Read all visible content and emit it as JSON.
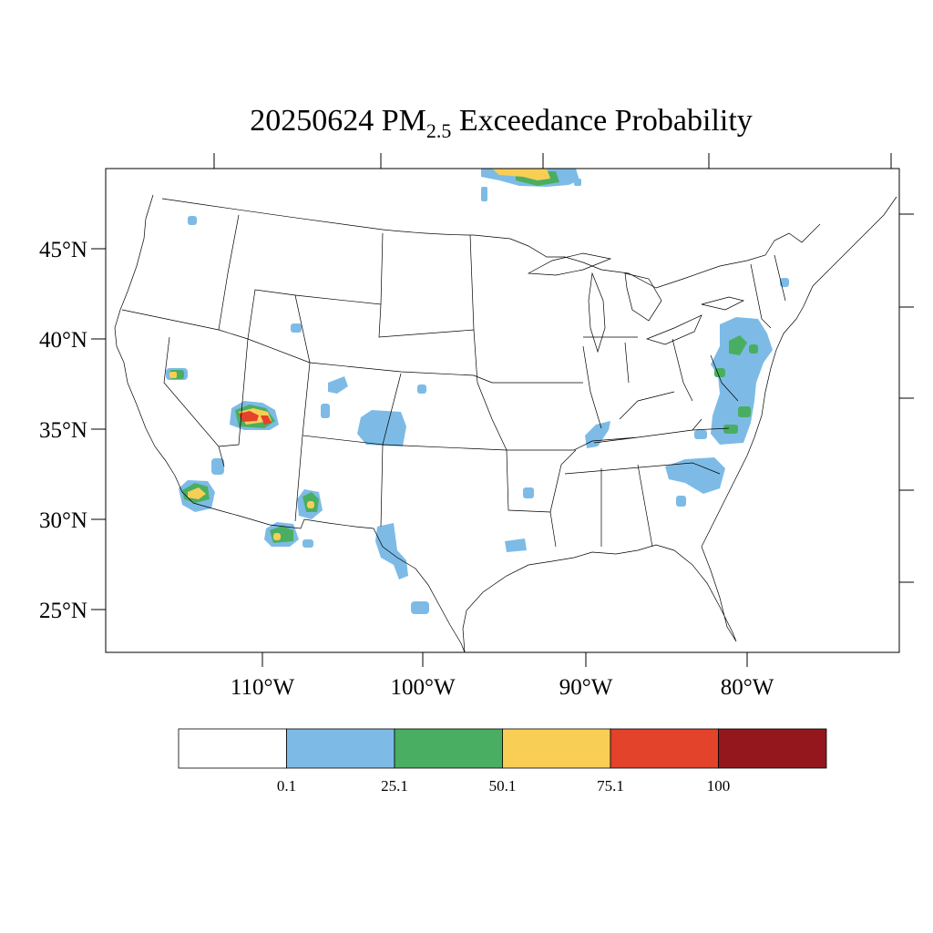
{
  "title": {
    "prefix": "20250624 PM",
    "subscript": "2.5",
    "suffix": " Exceedance Probability"
  },
  "axes": {
    "lat_labels": [
      "45°N",
      "40°N",
      "35°N",
      "30°N",
      "25°N"
    ],
    "lon_labels": [
      "110°W",
      "100°W",
      "90°W",
      "80°W"
    ]
  },
  "colorbar": {
    "colors": [
      "#ffffff",
      "#7dbbe6",
      "#4aae62",
      "#f9ce55",
      "#e3422b",
      "#93171d"
    ],
    "labels": [
      "0.1",
      "25.1",
      "50.1",
      "75.1",
      "100"
    ]
  },
  "colors": {
    "blue": "#7dbbe6",
    "green": "#4aae62",
    "yellow": "#f9ce55",
    "red": "#e3422b",
    "darkred": "#93171d",
    "line": "#000000"
  }
}
